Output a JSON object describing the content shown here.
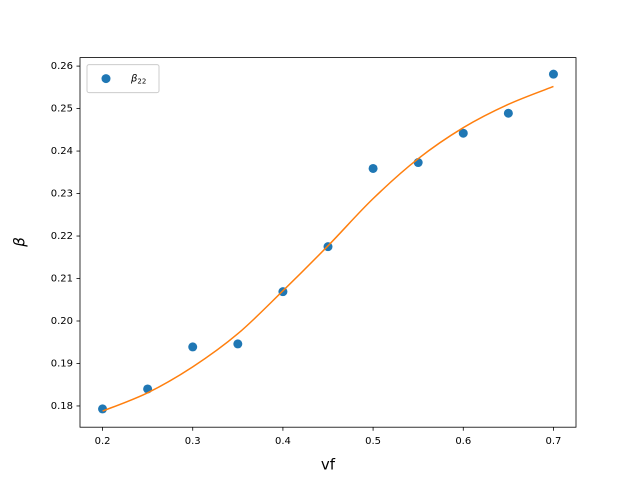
{
  "chart_data": {
    "type": "line",
    "x_label": "vf",
    "y_label": "β",
    "x": [
      0.2,
      0.25,
      0.3,
      0.35,
      0.4,
      0.45,
      0.5,
      0.55,
      0.6,
      0.65,
      0.7
    ],
    "series": [
      {
        "name": "β22",
        "color": "#1f77b4",
        "marker": "o",
        "values": [
          0.1793,
          0.184,
          0.1939,
          0.1946,
          0.2069,
          0.2175,
          0.2359,
          0.2373,
          0.2442,
          0.2489,
          0.2581
        ]
      },
      {
        "color": "#ff7f0e",
        "values": [
          0.1788,
          0.1831,
          0.1892,
          0.197,
          0.2071,
          0.2177,
          0.2288,
          0.2382,
          0.2455,
          0.251,
          0.2552
        ]
      }
    ],
    "xlim": [
      0.175,
      0.725
    ],
    "ylim": [
      0.175,
      0.262
    ],
    "xticks": [
      0.2,
      0.3,
      0.4,
      0.5,
      0.6,
      0.7
    ],
    "yticks": [
      0.18,
      0.19,
      {
        "value": 0.2,
        "label": "0.20"
      },
      0.21,
      0.22,
      0.23,
      0.24,
      0.25,
      0.26
    ],
    "legend": "upper left"
  }
}
